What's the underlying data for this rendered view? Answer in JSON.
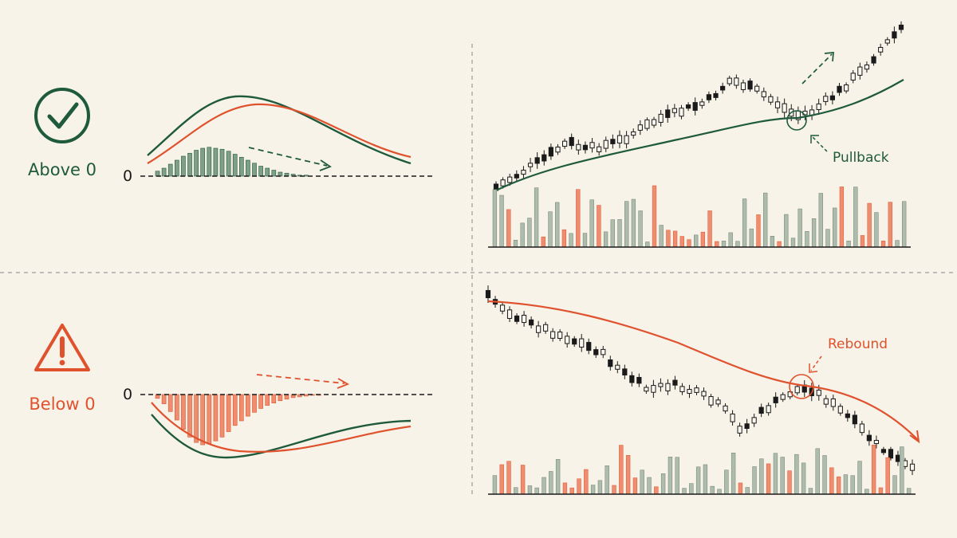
{
  "colors": {
    "background": "#f7f3e8",
    "bull": "#1f5a3c",
    "bull_bar": "#7f9f88",
    "bear": "#e0522e",
    "bear_bar": "#ee8d6f",
    "ink": "#1a1a1a",
    "divider": "#9a9a9a"
  },
  "top": {
    "status_icon": "check-circle-icon",
    "label": "Above 0",
    "zero_label": "0",
    "annotation": "Pullback"
  },
  "bottom": {
    "status_icon": "warning-triangle-icon",
    "label": "Below 0",
    "zero_label": "0",
    "annotation": "Rebound"
  },
  "chart_data": [
    {
      "type": "bar",
      "panel": "histogram-above-zero",
      "values": [
        5,
        8,
        12,
        16,
        20,
        23,
        26,
        28,
        29,
        28,
        27,
        25,
        22,
        19,
        16,
        13,
        10,
        8,
        6,
        4,
        3,
        2,
        1,
        1
      ],
      "lines": [
        "macd",
        "signal"
      ],
      "trend": "fading toward zero"
    },
    {
      "type": "bar",
      "panel": "histogram-below-zero",
      "values": [
        -5,
        -12,
        -22,
        -33,
        -45,
        -55,
        -62,
        -65,
        -64,
        -60,
        -55,
        -48,
        -40,
        -34,
        -28,
        -23,
        -18,
        -14,
        -11,
        -8,
        -6,
        -4,
        -3,
        -2,
        -1,
        -1
      ],
      "lines": [
        "macd",
        "signal"
      ],
      "trend": "fading toward zero"
    },
    {
      "type": "candlestick",
      "panel": "uptrend-price",
      "trend": "up",
      "candle_count": 60,
      "moving_average": "rising",
      "volume_bars": 60
    },
    {
      "type": "candlestick",
      "panel": "downtrend-price",
      "trend": "down",
      "candle_count": 60,
      "moving_average": "falling",
      "volume_bars": 60
    }
  ]
}
